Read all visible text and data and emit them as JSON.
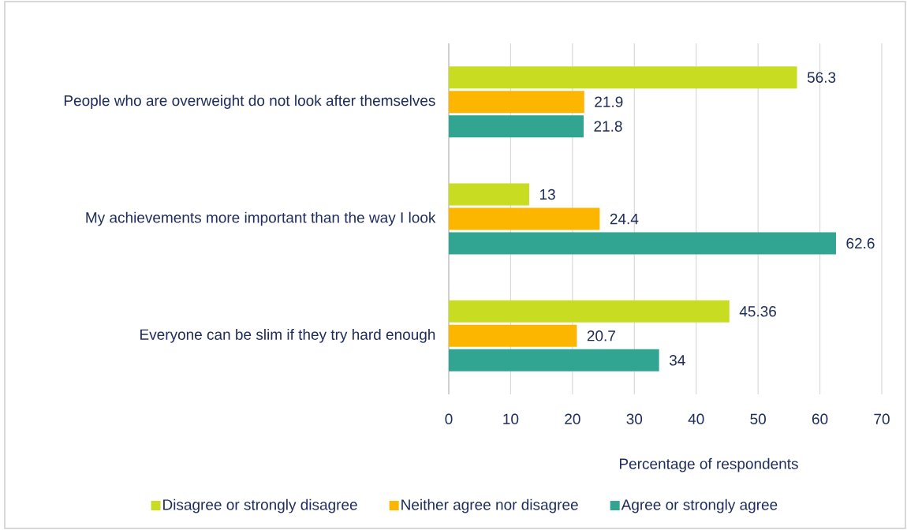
{
  "chart_data": {
    "type": "bar",
    "orientation": "horizontal",
    "xlabel": "Percentage of respondents",
    "categories": [
      "People who are overweight do not look after themselves",
      "My achievements more important than the way I look",
      "Everyone can be slim if they try hard enough"
    ],
    "series": [
      {
        "name": "Disagree or strongly disagree",
        "color": "#c8dc22",
        "values": [
          56.3,
          13,
          45.36
        ]
      },
      {
        "name": "Neither agree nor disagree",
        "color": "#fdb600",
        "values": [
          21.9,
          24.4,
          20.7
        ]
      },
      {
        "name": "Agree or strongly agree",
        "color": "#31a592",
        "values": [
          21.8,
          62.6,
          34
        ]
      }
    ],
    "xlim": [
      0,
      70
    ],
    "xticks": [
      0,
      10,
      20,
      30,
      40,
      50,
      60,
      70
    ],
    "grid": "x",
    "legend": "bottom",
    "data_labels": true
  }
}
